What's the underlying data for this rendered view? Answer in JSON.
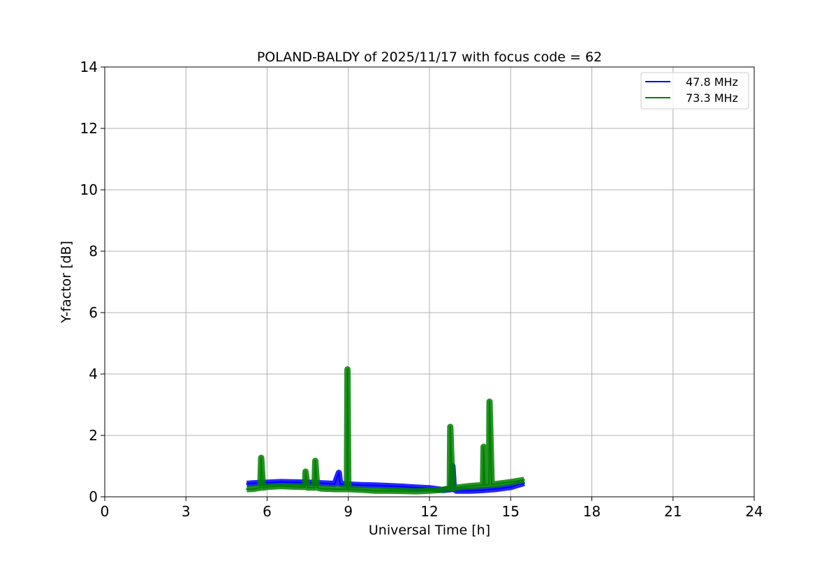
{
  "chart_data": {
    "type": "line",
    "title": "POLAND-BALDY of 2025/11/17 with focus code = 62",
    "xlabel": "Universal Time [h]",
    "ylabel": "Y-factor [dB]",
    "xlim": [
      0,
      24
    ],
    "ylim": [
      0,
      14
    ],
    "xticks": [
      0,
      3,
      6,
      9,
      12,
      15,
      18,
      21,
      24
    ],
    "yticks": [
      0,
      2,
      4,
      6,
      8,
      10,
      12,
      14
    ],
    "grid": true,
    "legend_position": "top-right",
    "series": [
      {
        "name": "47.8 MHz",
        "color": "#0000ff",
        "x": [
          5.25,
          5.5,
          6.0,
          6.5,
          7.0,
          7.5,
          8.0,
          8.5,
          8.65,
          8.7,
          9.0,
          9.5,
          10.0,
          10.5,
          11.0,
          11.5,
          12.0,
          12.5,
          12.8,
          12.85,
          12.9,
          13.0,
          13.5,
          14.0,
          14.5,
          15.0,
          15.5
        ],
        "y": [
          0.42,
          0.44,
          0.46,
          0.48,
          0.47,
          0.46,
          0.44,
          0.42,
          0.78,
          0.42,
          0.4,
          0.38,
          0.37,
          0.35,
          0.33,
          0.3,
          0.28,
          0.22,
          0.25,
          1.0,
          0.25,
          0.2,
          0.2,
          0.22,
          0.26,
          0.32,
          0.45
        ]
      },
      {
        "name": "73.3 MHz",
        "color": "#008000",
        "x": [
          5.25,
          5.5,
          5.75,
          5.78,
          5.85,
          6.0,
          6.5,
          7.0,
          7.4,
          7.42,
          7.5,
          7.75,
          7.78,
          7.85,
          8.0,
          8.5,
          8.95,
          8.97,
          9.0,
          9.5,
          10.0,
          10.5,
          11.0,
          11.5,
          12.0,
          12.5,
          12.75,
          12.77,
          12.85,
          13.0,
          13.5,
          13.98,
          14.0,
          14.05,
          14.2,
          14.22,
          14.3,
          14.5,
          15.0,
          15.5
        ],
        "y": [
          0.25,
          0.26,
          0.3,
          1.27,
          0.3,
          0.32,
          0.35,
          0.33,
          0.32,
          0.82,
          0.3,
          0.3,
          1.17,
          0.3,
          0.27,
          0.25,
          0.25,
          4.15,
          0.25,
          0.23,
          0.2,
          0.2,
          0.19,
          0.18,
          0.2,
          0.23,
          0.28,
          2.28,
          0.28,
          0.3,
          0.35,
          0.38,
          1.63,
          0.38,
          0.4,
          3.1,
          0.4,
          0.42,
          0.48,
          0.55
        ]
      }
    ]
  }
}
